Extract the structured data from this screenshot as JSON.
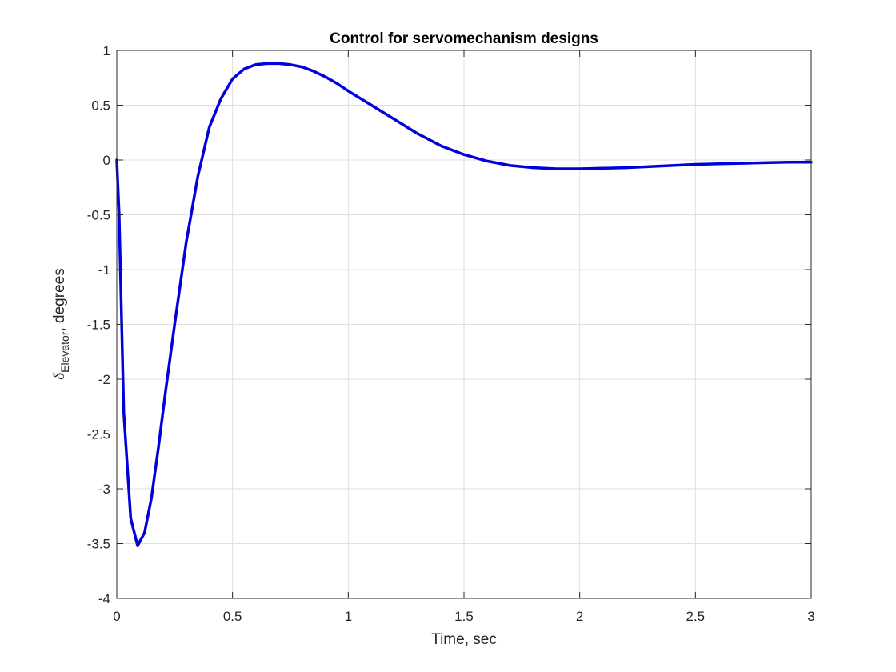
{
  "chart_data": {
    "type": "line",
    "title": "Control for servomechanism designs",
    "xlabel": "Time, sec",
    "ylabel": {
      "symbol": "δ",
      "subscript": "Elevator",
      "suffix": ", degrees"
    },
    "xlim": [
      0,
      3
    ],
    "ylim": [
      -4,
      1
    ],
    "xticks": [
      0,
      0.5,
      1,
      1.5,
      2,
      2.5,
      3
    ],
    "xtick_labels": [
      "0",
      "0.5",
      "1",
      "1.5",
      "2",
      "2.5",
      "3"
    ],
    "yticks": [
      1,
      0.5,
      0,
      -0.5,
      -1,
      -1.5,
      -2,
      -2.5,
      -3,
      -3.5,
      -4
    ],
    "ytick_labels": [
      "1",
      "0.5",
      "0",
      "-0.5",
      "-1",
      "-1.5",
      "-2",
      "-2.5",
      "-3",
      "-3.5",
      "-4"
    ],
    "grid": true,
    "line_color": "#0000dd",
    "series": [
      {
        "x": [
          0,
          0.01,
          0.03,
          0.06,
          0.09,
          0.12,
          0.15,
          0.18,
          0.21,
          0.25,
          0.3,
          0.35,
          0.4,
          0.45,
          0.5,
          0.55,
          0.6,
          0.65,
          0.7,
          0.75,
          0.8,
          0.85,
          0.9,
          0.95,
          1.0,
          1.1,
          1.2,
          1.3,
          1.4,
          1.5,
          1.6,
          1.7,
          1.8,
          1.9,
          2.0,
          2.1,
          2.2,
          2.3,
          2.4,
          2.5,
          2.6,
          2.7,
          2.8,
          2.9,
          3.0
        ],
        "y": [
          0,
          -0.5,
          -2.3,
          -3.27,
          -3.52,
          -3.4,
          -3.08,
          -2.62,
          -2.12,
          -1.5,
          -0.75,
          -0.15,
          0.3,
          0.56,
          0.74,
          0.83,
          0.87,
          0.88,
          0.88,
          0.87,
          0.85,
          0.81,
          0.76,
          0.7,
          0.63,
          0.5,
          0.37,
          0.24,
          0.13,
          0.05,
          -0.01,
          -0.05,
          -0.07,
          -0.08,
          -0.08,
          -0.075,
          -0.07,
          -0.06,
          -0.05,
          -0.04,
          -0.035,
          -0.03,
          -0.025,
          -0.02,
          -0.02
        ]
      }
    ]
  }
}
